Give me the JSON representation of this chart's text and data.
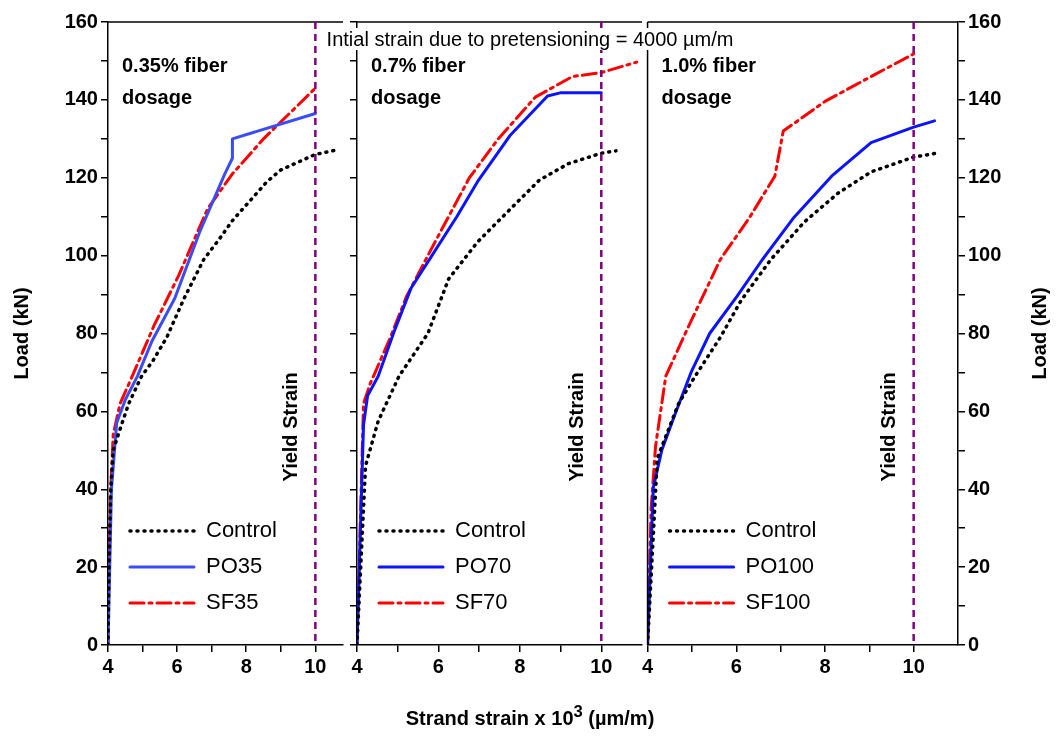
{
  "chart_data": [
    {
      "type": "line",
      "ylabel": "Load (kN)",
      "annotations": [
        "0.35% fiber dosage"
      ],
      "xlim": [
        4,
        10.8
      ],
      "ylim": [
        0,
        160
      ],
      "xticks": [
        4,
        {
          "value": 5,
          "label": null
        },
        6,
        {
          "value": 7,
          "label": null
        },
        8,
        {
          "value": 9,
          "label": null
        },
        10
      ],
      "yticks": [
        0,
        {
          "value": 10,
          "label": null
        },
        20,
        {
          "value": 30,
          "label": null
        },
        40,
        {
          "value": 50,
          "label": null
        },
        60,
        {
          "value": 70,
          "label": null
        },
        80,
        {
          "value": 90,
          "label": null
        },
        100,
        {
          "value": 110,
          "label": null
        },
        120,
        {
          "value": 130,
          "label": null
        },
        140,
        {
          "value": 150,
          "label": null
        },
        160
      ],
      "grid": false,
      "legend": "bottom left",
      "ref_lines": [
        {
          "axis": "x",
          "value": 10,
          "label": "Yield Strain",
          "color": "#800080",
          "line_style": "dashed"
        }
      ],
      "series": [
        {
          "name": "Control",
          "color": "#000000",
          "line_style": "dotted",
          "x": [
            4,
            4.03,
            4.08,
            4.15,
            4.37,
            4.6,
            4.97,
            5.3,
            5.7,
            6.2,
            6.77,
            7.2,
            7.6,
            8.2,
            8.6,
            9,
            9.5,
            10,
            10.55
          ],
          "values": [
            0,
            20,
            40,
            50,
            56,
            62,
            69,
            73,
            79,
            89,
            99,
            104,
            109,
            115,
            119,
            122,
            124,
            126,
            127
          ]
        },
        {
          "name": "PO35",
          "color": "#3a4cf5",
          "line_style": "solid",
          "x": [
            4,
            4.05,
            4.1,
            4.25,
            4.5,
            4.85,
            5.27,
            5.93,
            6.65,
            7.38,
            7.6,
            7.6,
            10
          ],
          "values": [
            0,
            20,
            40,
            57,
            63,
            69,
            78,
            89,
            106,
            121,
            125,
            130,
            136.5
          ]
        },
        {
          "name": "SF35",
          "color": "#ff0000",
          "line_style": "dashed",
          "x": [
            4,
            4.03,
            4.08,
            4.15,
            4.35,
            4.7,
            5.33,
            6.05,
            6.88,
            7.6,
            8.5,
            10
          ],
          "values": [
            0,
            20,
            40,
            54,
            62,
            69,
            82,
            95,
            112,
            121,
            130,
            143
          ]
        }
      ]
    },
    {
      "type": "line",
      "title": "Intial strain due to pretensioning = 4000 µm/m",
      "xlabel": "Strand strain x 10$^{3}$ (µm/m)",
      "annotations": [
        "0.7% fiber dosage"
      ],
      "xlim": [
        4,
        11
      ],
      "ylim": [
        0,
        160
      ],
      "xticks": [
        4,
        {
          "value": 5,
          "label": null
        },
        6,
        {
          "value": 7,
          "label": null
        },
        8,
        {
          "value": 9,
          "label": null
        },
        10
      ],
      "yticks": [
        0,
        {
          "value": 10,
          "label": null
        },
        20,
        {
          "value": 30,
          "label": null
        },
        40,
        {
          "value": 50,
          "label": null
        },
        60,
        {
          "value": 70,
          "label": null
        },
        80,
        {
          "value": 90,
          "label": null
        },
        100,
        {
          "value": 110,
          "label": null
        },
        120,
        {
          "value": 130,
          "label": null
        },
        140,
        {
          "value": 150,
          "label": null
        },
        160
      ],
      "tick_labels": "x",
      "grid": false,
      "legend": "bottom left",
      "ref_lines": [
        {
          "axis": "x",
          "value": 10,
          "label": "Yield Strain",
          "color": "#800080",
          "line_style": "dashed"
        }
      ],
      "series": [
        {
          "name": "Control",
          "color": "#000000",
          "line_style": "dotted",
          "x": [
            4,
            4.21,
            4.52,
            5.03,
            5.74,
            6.25,
            6.96,
            7.77,
            8.48,
            9.19,
            10,
            10.36
          ],
          "values": [
            0,
            46,
            57.5,
            69,
            80,
            94,
            103.5,
            112,
            119.4,
            123.6,
            126.3,
            126.9
          ]
        },
        {
          "name": "PO70",
          "color": "#0a14ff",
          "line_style": "solid",
          "x": [
            4,
            4.16,
            4.26,
            4.52,
            4.93,
            5.33,
            5.84,
            6.45,
            6.96,
            7.77,
            8.68,
            8.99,
            10
          ],
          "values": [
            0,
            56.5,
            64,
            69,
            81,
            91.7,
            100,
            110,
            119,
            131,
            141,
            141.8,
            141.8
          ]
        },
        {
          "name": "SF70",
          "color": "#ff0000",
          "line_style": "dashed",
          "x": [
            4,
            4.16,
            4.32,
            4.82,
            5.22,
            5.84,
            6.76,
            7.47,
            8.38,
            9.29,
            10,
            10.87
          ],
          "values": [
            0,
            62,
            67,
            79,
            89.6,
            102,
            120,
            130,
            140.7,
            146,
            147,
            149.7
          ]
        }
      ]
    },
    {
      "type": "line",
      "ylabel": "Load (kN)",
      "annotations": [
        "1.0% fiber dosage"
      ],
      "xlim": [
        4,
        11
      ],
      "ylim": [
        0,
        160
      ],
      "xticks": [
        4,
        {
          "value": 5,
          "label": null
        },
        6,
        {
          "value": 7,
          "label": null
        },
        8,
        {
          "value": 9,
          "label": null
        },
        10
      ],
      "yticks": [
        0,
        {
          "value": 10,
          "label": null
        },
        20,
        {
          "value": 30,
          "label": null
        },
        40,
        {
          "value": 50,
          "label": null
        },
        60,
        {
          "value": 70,
          "label": null
        },
        80,
        {
          "value": 90,
          "label": null
        },
        100,
        {
          "value": 110,
          "label": null
        },
        120,
        {
          "value": 130,
          "label": null
        },
        140,
        {
          "value": 150,
          "label": null
        },
        160
      ],
      "grid": false,
      "legend": "bottom left",
      "ref_lines": [
        {
          "axis": "x",
          "value": 10,
          "label": "Yield Strain",
          "color": "#800080",
          "line_style": "dashed"
        }
      ],
      "series": [
        {
          "name": "Control",
          "color": "#000000",
          "line_style": "dotted",
          "x": [
            4,
            4.22,
            4.7,
            5.07,
            5.64,
            6.11,
            6.78,
            7.54,
            8.29,
            9.04,
            10,
            10.57
          ],
          "values": [
            0,
            48,
            62,
            69,
            79,
            88.5,
            99,
            108.7,
            116,
            121.5,
            125.3,
            126.4
          ]
        },
        {
          "name": "PO100",
          "color": "#0a14ff",
          "line_style": "solid",
          "x": [
            4,
            4.13,
            4.32,
            4.6,
            4.98,
            5.4,
            6.02,
            6.59,
            7.3,
            8.15,
            9.04,
            10,
            10.47
          ],
          "values": [
            0,
            40.5,
            50,
            58.7,
            70,
            80,
            89.6,
            99,
            109.8,
            120.4,
            129,
            133,
            134.6
          ]
        },
        {
          "name": "SF100",
          "color": "#ff0000",
          "line_style": "dashed",
          "x": [
            4,
            4.08,
            4.18,
            4.41,
            4.89,
            5.64,
            6.3,
            6.87,
            7.06,
            8,
            9.04,
            10
          ],
          "values": [
            0,
            35,
            51,
            69,
            81,
            99,
            109.8,
            120.4,
            132,
            139.6,
            146,
            151.8
          ]
        }
      ]
    }
  ]
}
